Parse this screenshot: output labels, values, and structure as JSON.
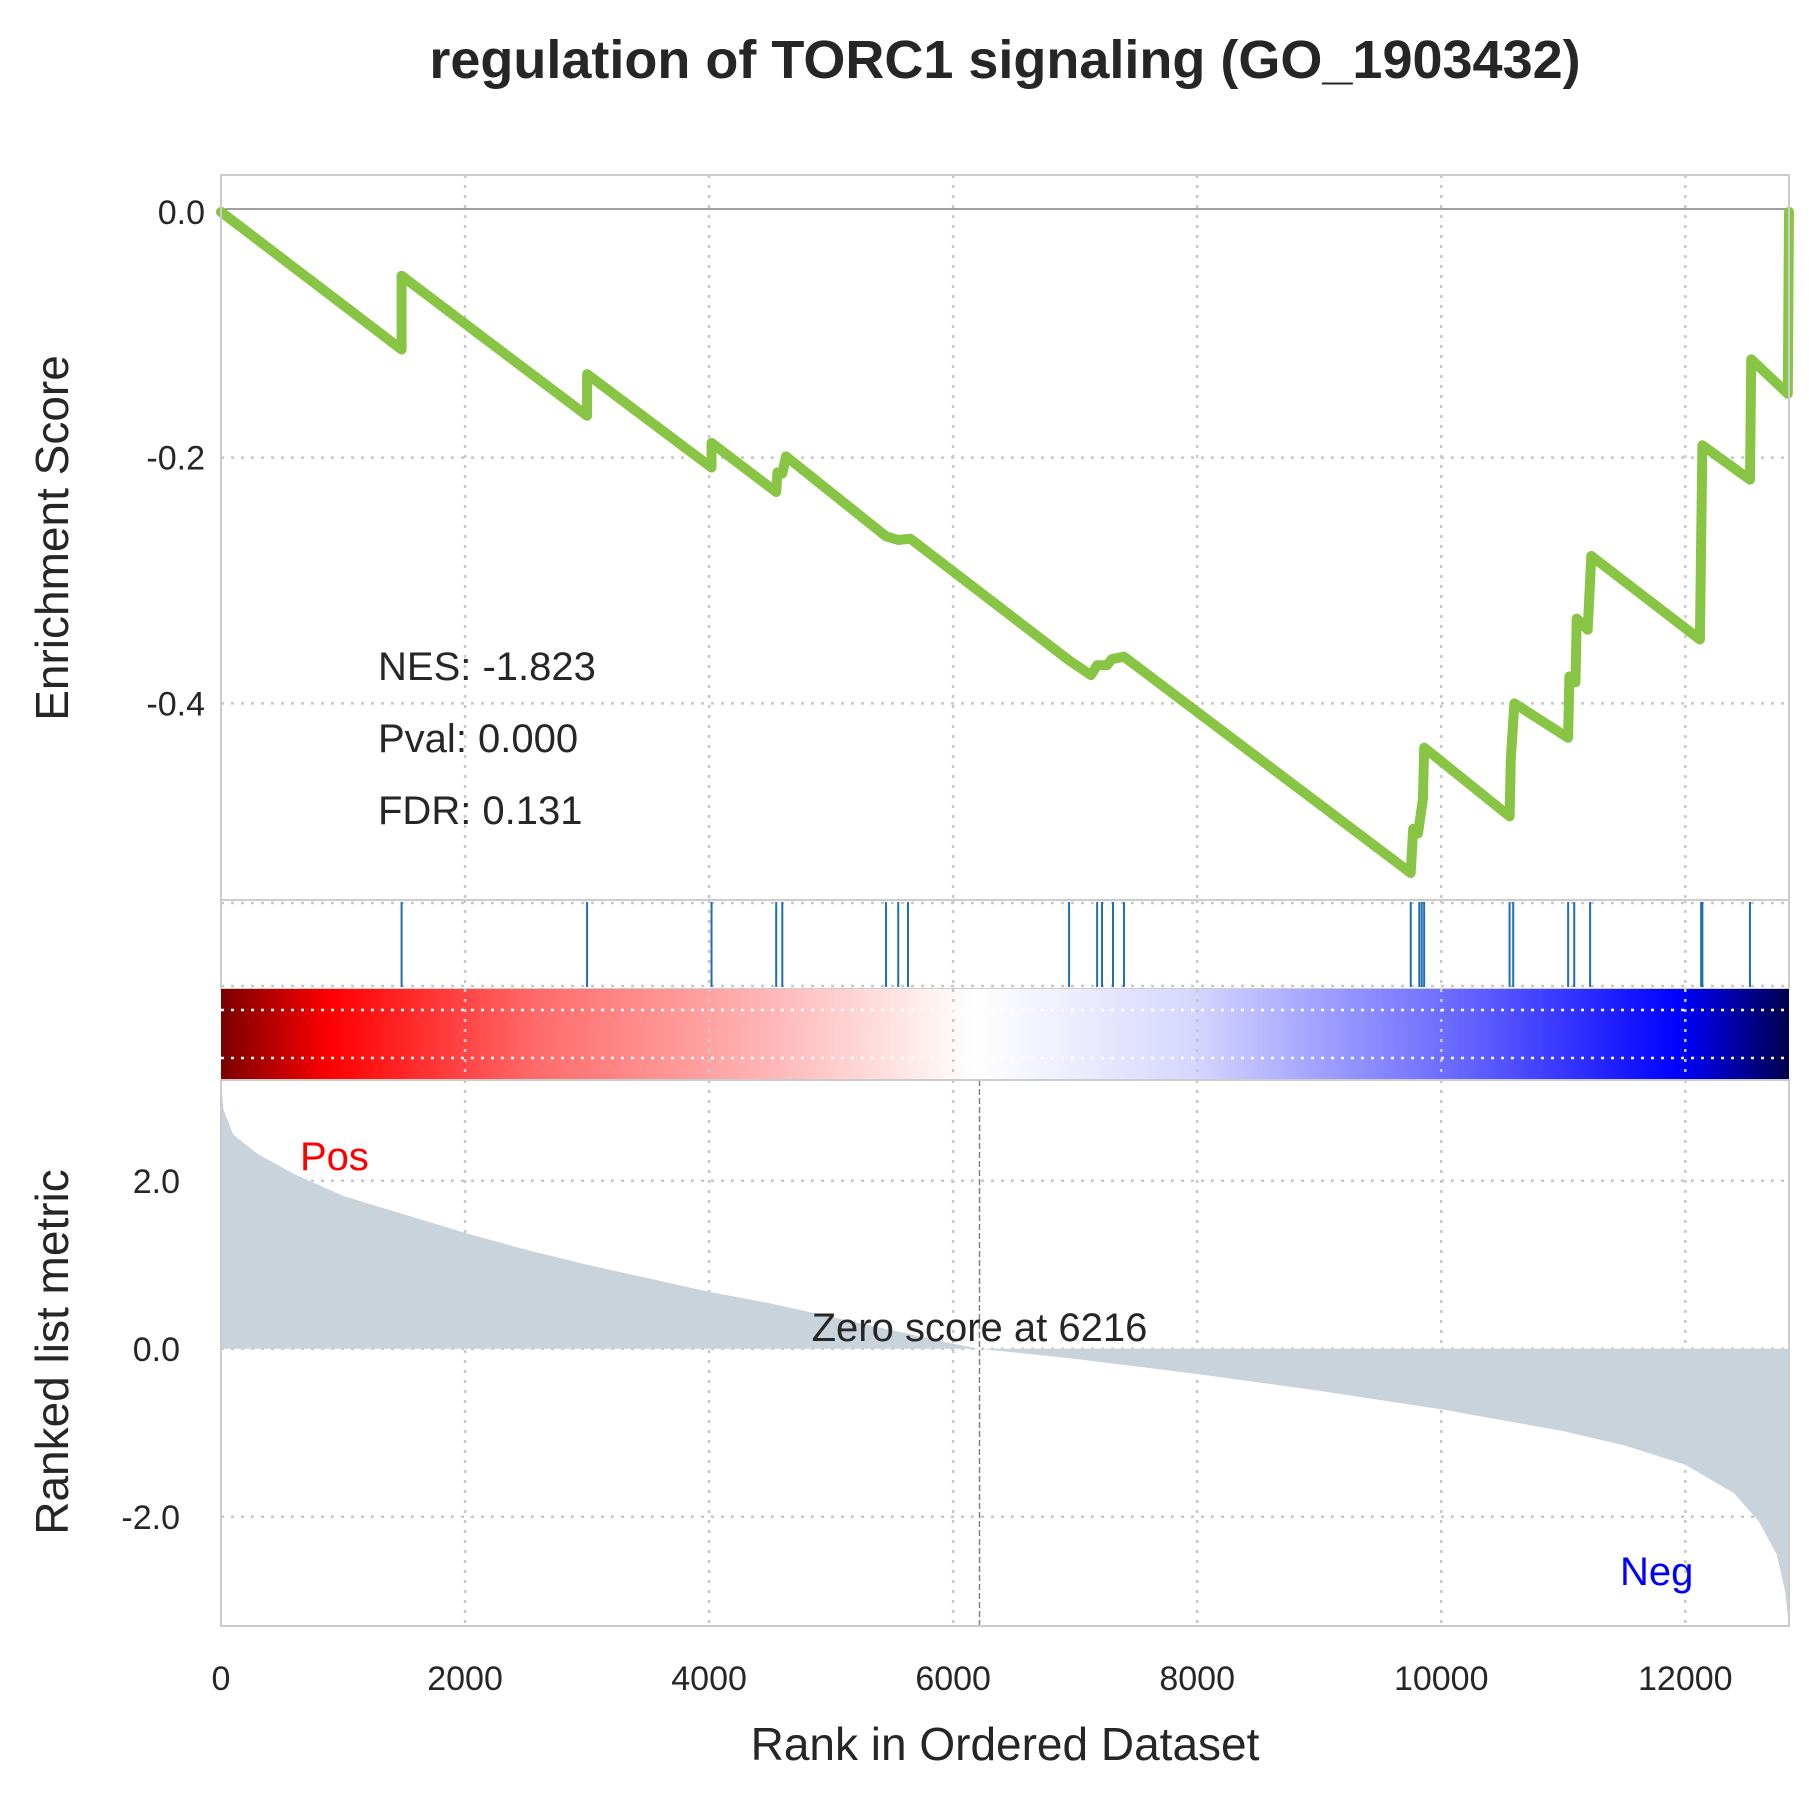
{
  "chart_data": {
    "type": "line",
    "title": "regulation of TORC1 signaling (GO_1903432)",
    "xlabel": "Rank in Ordered Dataset",
    "xlim": [
      0,
      12850
    ],
    "xticks": [
      "0",
      "2000",
      "4000",
      "6000",
      "8000",
      "10000",
      "12000"
    ],
    "grid": true,
    "colors": {
      "es_line": "#88c544",
      "hits": "#1f6fb2",
      "metric_fill": "#c8d3dc",
      "pos": "#ff0000",
      "neg": "#0000ff"
    },
    "enrichment": {
      "ylabel": "Enrichment Score",
      "ylim": [
        -0.56,
        0.03
      ],
      "yticks": [
        "0.0",
        "-0.2",
        "-0.4"
      ],
      "stats": {
        "nes": "NES: -1.823",
        "pval": "Pval: 0.000",
        "fdr": "FDR: 0.131"
      },
      "points": [
        [
          0,
          0.0
        ],
        [
          1480,
          -0.112
        ],
        [
          1480,
          -0.052
        ],
        [
          3000,
          -0.166
        ],
        [
          3000,
          -0.132
        ],
        [
          4020,
          -0.208
        ],
        [
          4020,
          -0.188
        ],
        [
          4550,
          -0.228
        ],
        [
          4560,
          -0.212
        ],
        [
          4600,
          -0.213
        ],
        [
          4630,
          -0.199
        ],
        [
          5450,
          -0.264
        ],
        [
          5550,
          -0.267
        ],
        [
          5650,
          -0.266
        ],
        [
          6950,
          -0.365
        ],
        [
          7130,
          -0.377
        ],
        [
          7180,
          -0.369
        ],
        [
          7260,
          -0.369
        ],
        [
          7300,
          -0.364
        ],
        [
          7400,
          -0.362
        ],
        [
          9750,
          -0.538
        ],
        [
          9770,
          -0.502
        ],
        [
          9810,
          -0.506
        ],
        [
          9850,
          -0.478
        ],
        [
          9860,
          -0.436
        ],
        [
          10560,
          -0.492
        ],
        [
          10570,
          -0.445
        ],
        [
          10600,
          -0.4
        ],
        [
          11040,
          -0.428
        ],
        [
          11050,
          -0.378
        ],
        [
          11100,
          -0.383
        ],
        [
          11110,
          -0.331
        ],
        [
          11200,
          -0.34
        ],
        [
          11230,
          -0.28
        ],
        [
          12120,
          -0.348
        ],
        [
          12130,
          -0.27
        ],
        [
          12140,
          -0.19
        ],
        [
          12530,
          -0.218
        ],
        [
          12540,
          -0.12
        ],
        [
          12840,
          -0.148
        ],
        [
          12850,
          0.0
        ]
      ],
      "hits": [
        1480,
        3000,
        4020,
        4550,
        4600,
        5450,
        5550,
        5630,
        6950,
        7180,
        7220,
        7310,
        7400,
        9750,
        9820,
        9840,
        9860,
        10560,
        10590,
        11040,
        11090,
        11220,
        12130,
        12140,
        12530,
        12850
      ]
    },
    "metric": {
      "ylabel": "Ranked list metric",
      "ylim": [
        -3.3,
        3.2
      ],
      "yticks": [
        "2.0",
        "0.0",
        "-2.0"
      ],
      "zero_label": "Zero score at 6216",
      "zero_rank": 6216,
      "pos_label": "Pos",
      "neg_label": "Neg",
      "curve": [
        [
          0,
          3.2
        ],
        [
          20,
          2.85
        ],
        [
          100,
          2.55
        ],
        [
          300,
          2.32
        ],
        [
          600,
          2.08
        ],
        [
          1000,
          1.82
        ],
        [
          1500,
          1.6
        ],
        [
          2000,
          1.38
        ],
        [
          2500,
          1.18
        ],
        [
          3000,
          1.0
        ],
        [
          3500,
          0.84
        ],
        [
          4000,
          0.68
        ],
        [
          4500,
          0.54
        ],
        [
          5000,
          0.38
        ],
        [
          5500,
          0.22
        ],
        [
          6000,
          0.06
        ],
        [
          6216,
          0.0
        ],
        [
          7000,
          -0.12
        ],
        [
          8000,
          -0.3
        ],
        [
          9000,
          -0.5
        ],
        [
          10000,
          -0.72
        ],
        [
          11000,
          -0.98
        ],
        [
          11500,
          -1.15
        ],
        [
          12000,
          -1.38
        ],
        [
          12400,
          -1.72
        ],
        [
          12600,
          -2.05
        ],
        [
          12750,
          -2.45
        ],
        [
          12820,
          -2.9
        ],
        [
          12850,
          -3.3
        ]
      ]
    }
  }
}
